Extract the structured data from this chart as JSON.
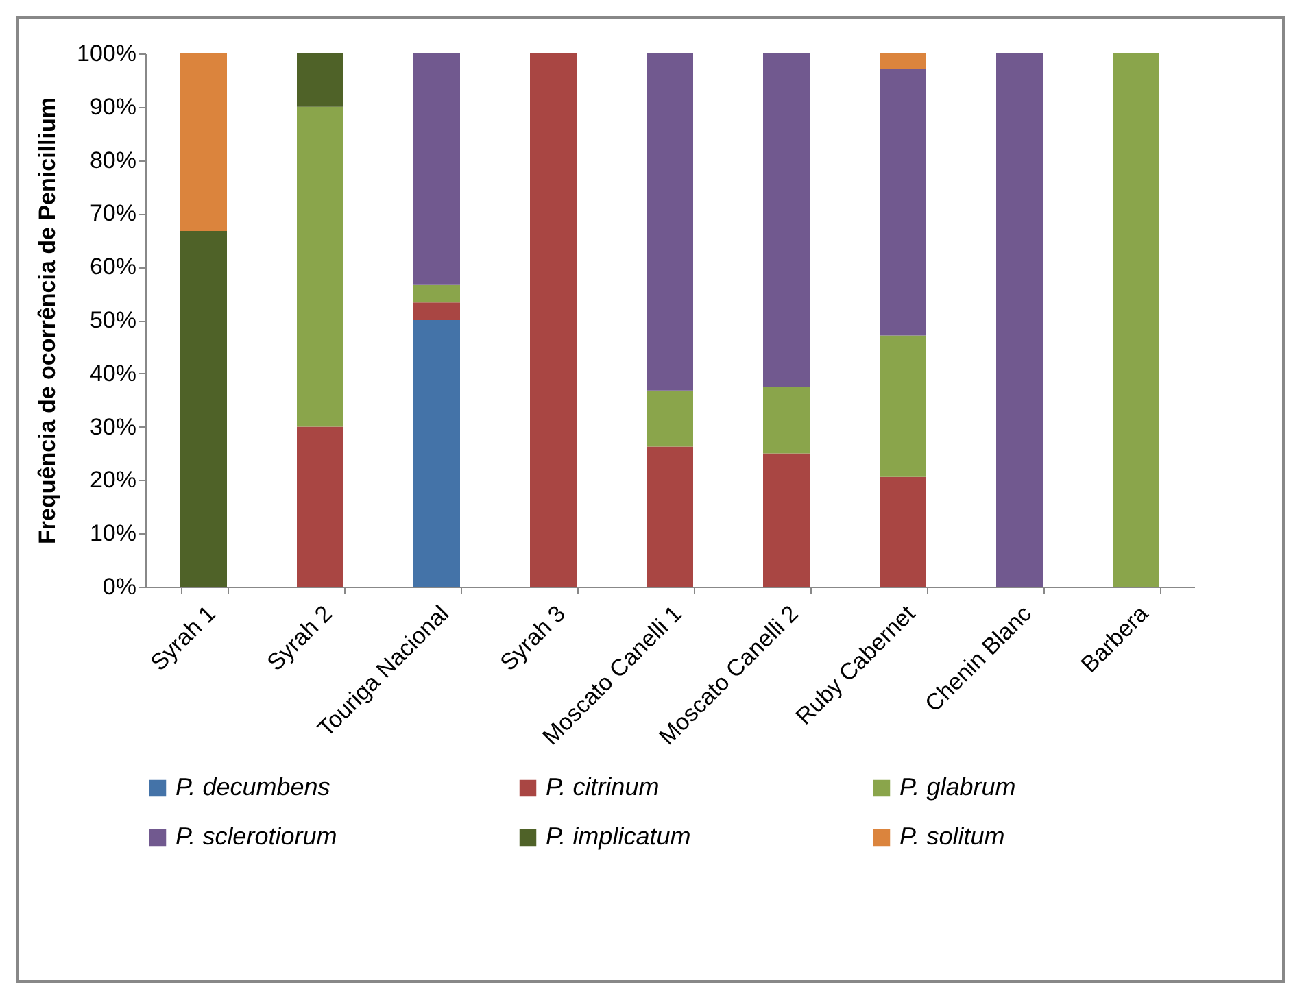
{
  "chart_data": {
    "type": "bar",
    "stacked": true,
    "ylabel": "Frequência de ocorrência de Penicillium",
    "categories": [
      "Syrah 1",
      "Syrah 2",
      "Touriga Nacional",
      "Syrah 3",
      "Moscato Canelli 1",
      "Moscato Canelli 2",
      "Ruby Cabernet",
      "Chenin Blanc",
      "Barbera"
    ],
    "series": [
      {
        "name": "P. decumbens",
        "color": "#4473a8",
        "values": [
          null,
          null,
          50,
          null,
          null,
          null,
          null,
          null,
          null
        ]
      },
      {
        "name": "P. citrinum",
        "color": "#a94643",
        "values": [
          null,
          30,
          3.3,
          100,
          26.3,
          25,
          20.6,
          null,
          null
        ]
      },
      {
        "name": "P. glabrum",
        "color": "#8aa54b",
        "values": [
          null,
          60,
          3.3,
          null,
          10.5,
          12.5,
          26.5,
          null,
          100
        ]
      },
      {
        "name": "P. sclerotiorum",
        "color": "#71598f",
        "values": [
          null,
          null,
          43.4,
          null,
          63.2,
          62.5,
          50,
          100,
          null
        ]
      },
      {
        "name": "P. implicatum",
        "color": "#4f6228",
        "values": [
          66.7,
          10,
          null,
          null,
          null,
          null,
          null,
          null,
          null
        ]
      },
      {
        "name": "P. solitum",
        "color": "#db843d",
        "values": [
          33.3,
          null,
          null,
          null,
          null,
          null,
          2.9,
          null,
          null
        ]
      }
    ],
    "ylim": [
      0,
      100
    ],
    "yticks": [
      {
        "value": 0,
        "label": "0%"
      },
      {
        "value": 10,
        "label": "10%"
      },
      {
        "value": 20,
        "label": "20%"
      },
      {
        "value": 30,
        "label": "30%"
      },
      {
        "value": 40,
        "label": "40%"
      },
      {
        "value": 50,
        "label": "50%"
      },
      {
        "value": 60,
        "label": "60%"
      },
      {
        "value": 70,
        "label": "70%"
      },
      {
        "value": 80,
        "label": "80%"
      },
      {
        "value": 90,
        "label": "90%"
      },
      {
        "value": 100,
        "label": "100%"
      }
    ],
    "grid": false,
    "legend": "bottom"
  }
}
